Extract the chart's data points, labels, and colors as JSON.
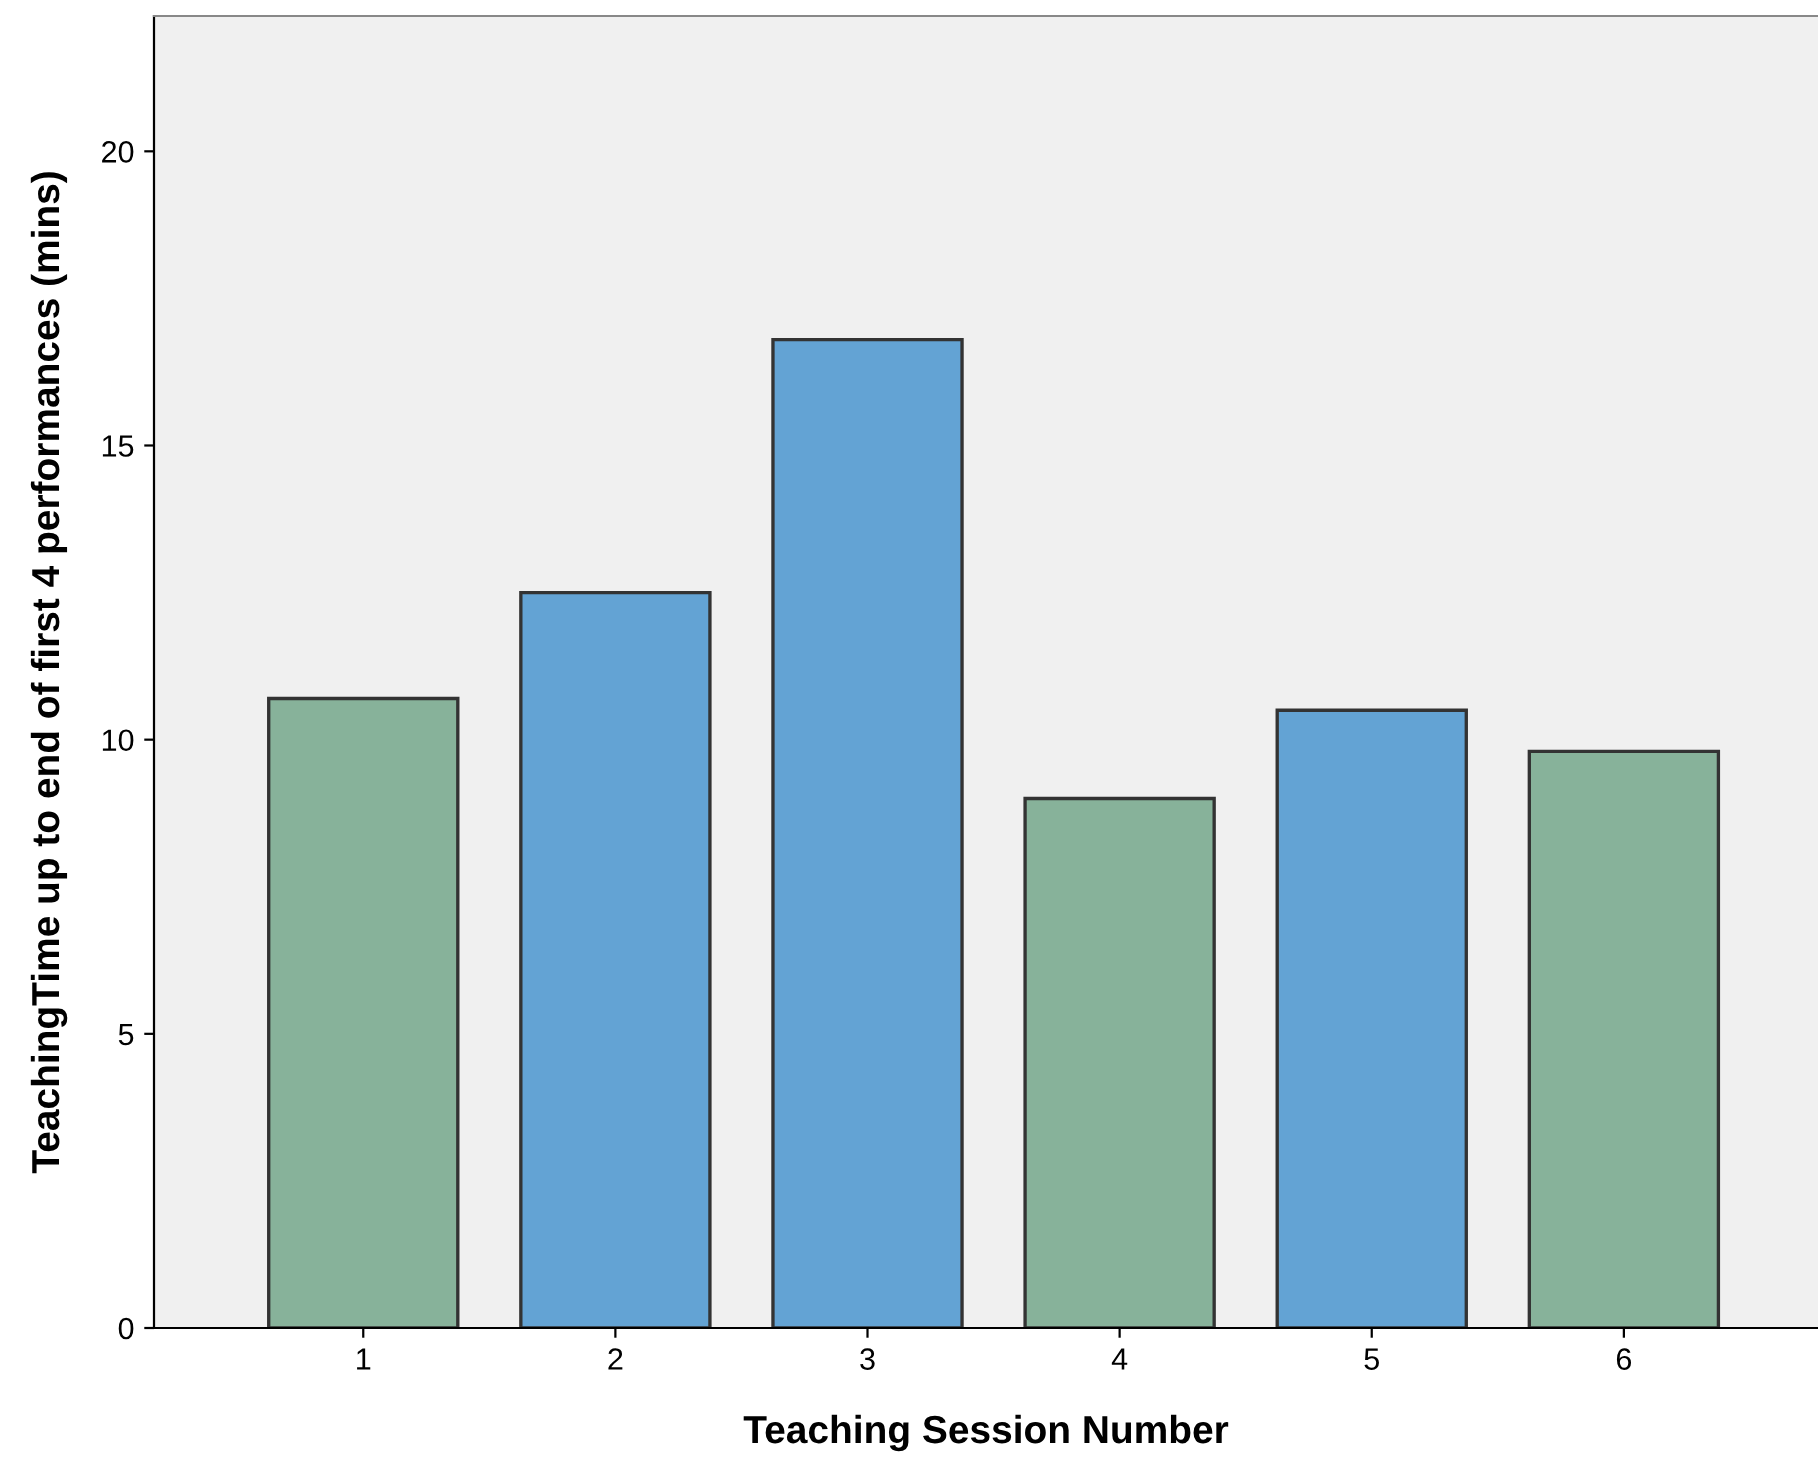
{
  "chart_data": {
    "type": "bar",
    "xlabel": "Teaching Session Number",
    "ylabel": "TeachingTime up to end of first 4 performances (mins)",
    "categories": [
      "1",
      "2",
      "3",
      "4",
      "5",
      "6"
    ],
    "values": [
      10.7,
      12.5,
      16.8,
      9.0,
      10.5,
      9.8
    ],
    "colors": [
      "#87b29a",
      "#63a3d4",
      "#63a3d4",
      "#87b29a",
      "#63a3d4",
      "#87b29a"
    ],
    "ylim": [
      0,
      22.3
    ],
    "yticks": [
      0,
      5,
      10,
      15,
      20
    ],
    "grid": false,
    "legend": false
  }
}
